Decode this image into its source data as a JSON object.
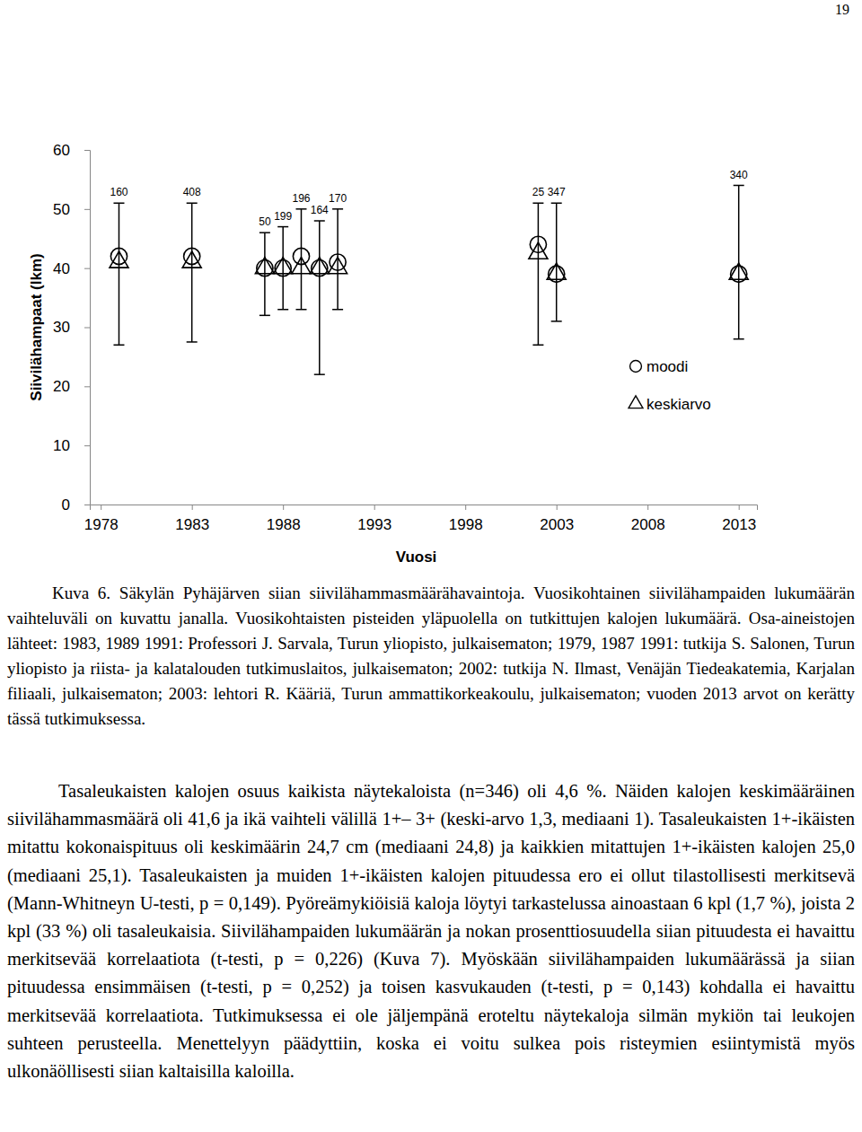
{
  "page_number": "19",
  "chart_data": {
    "type": "scatter",
    "xlabel": "Vuosi",
    "ylabel": "Siivilähampaat (lkm)",
    "x": [
      1979,
      1983,
      1987,
      1988,
      1989,
      1990,
      1991,
      2002,
      2003,
      2013
    ],
    "series": [
      {
        "name": "moodi",
        "color": "#000000",
        "marker": "circle",
        "values": [
          42,
          42,
          40,
          40,
          42,
          40,
          41,
          44,
          39,
          39
        ]
      },
      {
        "name": "keskiarvo",
        "color": "#000000",
        "marker": "triangle",
        "values": [
          41,
          41,
          40,
          40,
          40,
          40,
          40,
          42.5,
          39,
          39
        ]
      }
    ],
    "whisker_min": [
      27,
      27.5,
      32,
      33,
      33,
      22,
      33,
      27,
      31,
      28
    ],
    "whisker_max": [
      51,
      51,
      46,
      47,
      50,
      48,
      50,
      51,
      51,
      54
    ],
    "counts": [
      160,
      408,
      50,
      199,
      196,
      164,
      170,
      25,
      347,
      340
    ],
    "xlim": [
      1977.4,
      2014
    ],
    "xticks": [
      1978,
      1983,
      1988,
      1993,
      1998,
      2003,
      2008,
      2013
    ],
    "ylim": [
      0,
      60
    ],
    "yticks": [
      0,
      10,
      20,
      30,
      40,
      50,
      60
    ],
    "grid": false,
    "legend": "lower right"
  },
  "caption": "Kuva 6. Säkylän Pyhäjärven siian siivilähammasmäärähavaintoja. Vuosikohtainen siivilähampaiden lukumäärän vaihteluväli on kuvattu janalla. Vuosikohtaisten pisteiden yläpuolella on tutkittujen kalojen lukumäärä. Osa-aineistojen lähteet: 1983, 1989 1991: Professori J. Sarvala, Turun yliopisto, julkaisematon; 1979, 1987 1991: tutkija S. Salonen, Turun yliopisto ja riista- ja kalatalouden tutkimuslaitos, julkaisematon; 2002: tutkija N. Ilmast, Venäjän Tiedeakatemia, Karjalan filiaali, julkaisematon; 2003: lehtori R. Kääriä, Turun ammattikorkeakoulu, julkaisematon; vuoden 2013 arvot on kerätty tässä tutkimuksessa.",
  "paragraph": "Tasaleukaisten kalojen osuus kaikista näytekaloista (n=346) oli 4,6 %. Näiden kalojen keskimääräinen siivilähammasmäärä oli 41,6 ja ikä vaihteli välillä 1+– 3+ (keski-arvo 1,3, mediaani 1). Tasaleukaisten 1+-ikäisten mitattu kokonaispituus oli keskimäärin 24,7 cm (mediaani 24,8) ja kaikkien mitattujen 1+-ikäisten kalojen 25,0 (mediaani 25,1). Tasaleukaisten ja muiden 1+-ikäisten kalojen pituudessa ero ei ollut tilastollisesti merkitsevä (Mann-Whitneyn U-testi, p = 0,149). Pyöreämykiöisiä kaloja löytyi tarkastelussa ainoastaan 6 kpl (1,7 %), joista 2 kpl (33 %) oli tasaleukaisia. Siivilähampaiden lukumäärän ja nokan prosenttiosuudella siian pituudesta ei havaittu merkitsevää korrelaatiota (t-testi, p = 0,226) (Kuva 7). Myöskään siivilähampaiden lukumäärässä ja siian pituudessa ensimmäisen (t-testi, p = 0,252) ja toisen kasvukauden (t-testi, p = 0,143) kohdalla ei havaittu merkitsevää korrelaatiota. Tutkimuksessa ei ole jäljempänä eroteltu näytekaloja silmän mykiön tai leukojen suhteen perusteella. Menettelyyn päädyttiin, koska ei voitu sulkea pois risteymien esiintymistä myös ulkonäöllisesti siian kaltaisilla kaloilla."
}
